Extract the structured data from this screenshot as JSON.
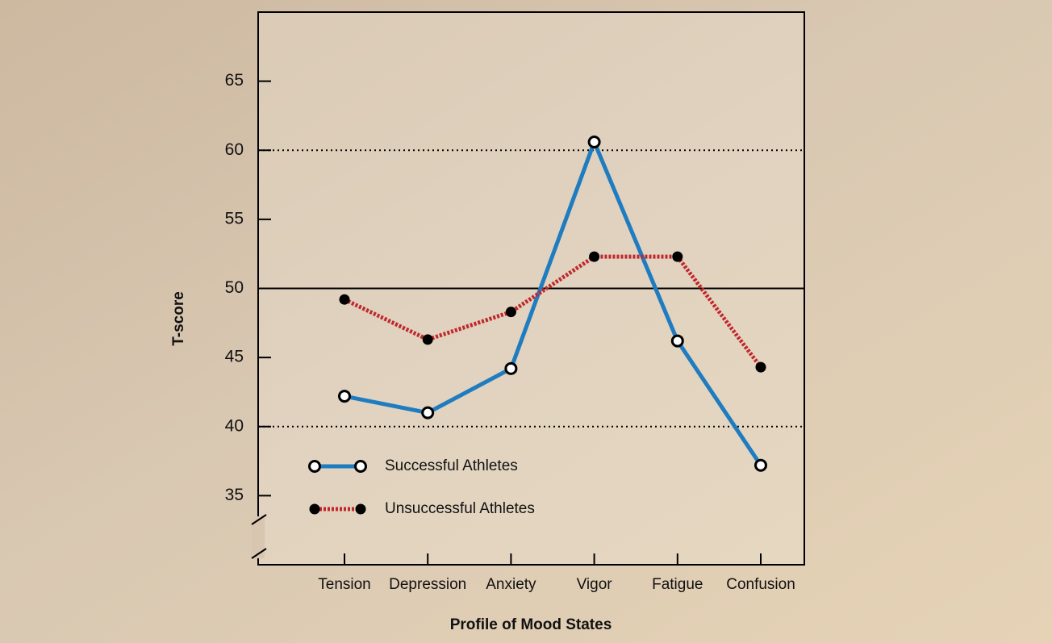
{
  "chart_data": {
    "type": "line",
    "x_label": "Profile of Mood States",
    "y_label": "T-score",
    "categories": [
      "Tension",
      "Depression",
      "Anxiety",
      "Vigor",
      "Fatigue",
      "Confusion"
    ],
    "series": [
      {
        "name": "Successful Athletes",
        "color": "#1f7cc0",
        "line_style": "solid",
        "marker": "hollow",
        "values": [
          42.2,
          41.0,
          44.2,
          60.6,
          46.2,
          37.2
        ]
      },
      {
        "name": "Unsuccessful Athletes",
        "color": "#c0272d",
        "line_style": "dotted",
        "marker": "filled",
        "values": [
          49.2,
          46.3,
          48.3,
          52.3,
          52.3,
          44.3
        ]
      }
    ],
    "ylim": [
      30,
      70
    ],
    "yticks": [
      35,
      40,
      45,
      50,
      55,
      60,
      65
    ],
    "reference_lines": [
      {
        "value": 40,
        "style": "dotted"
      },
      {
        "value": 50,
        "style": "solid"
      },
      {
        "value": 60,
        "style": "dotted"
      }
    ],
    "legend": "lower left"
  }
}
